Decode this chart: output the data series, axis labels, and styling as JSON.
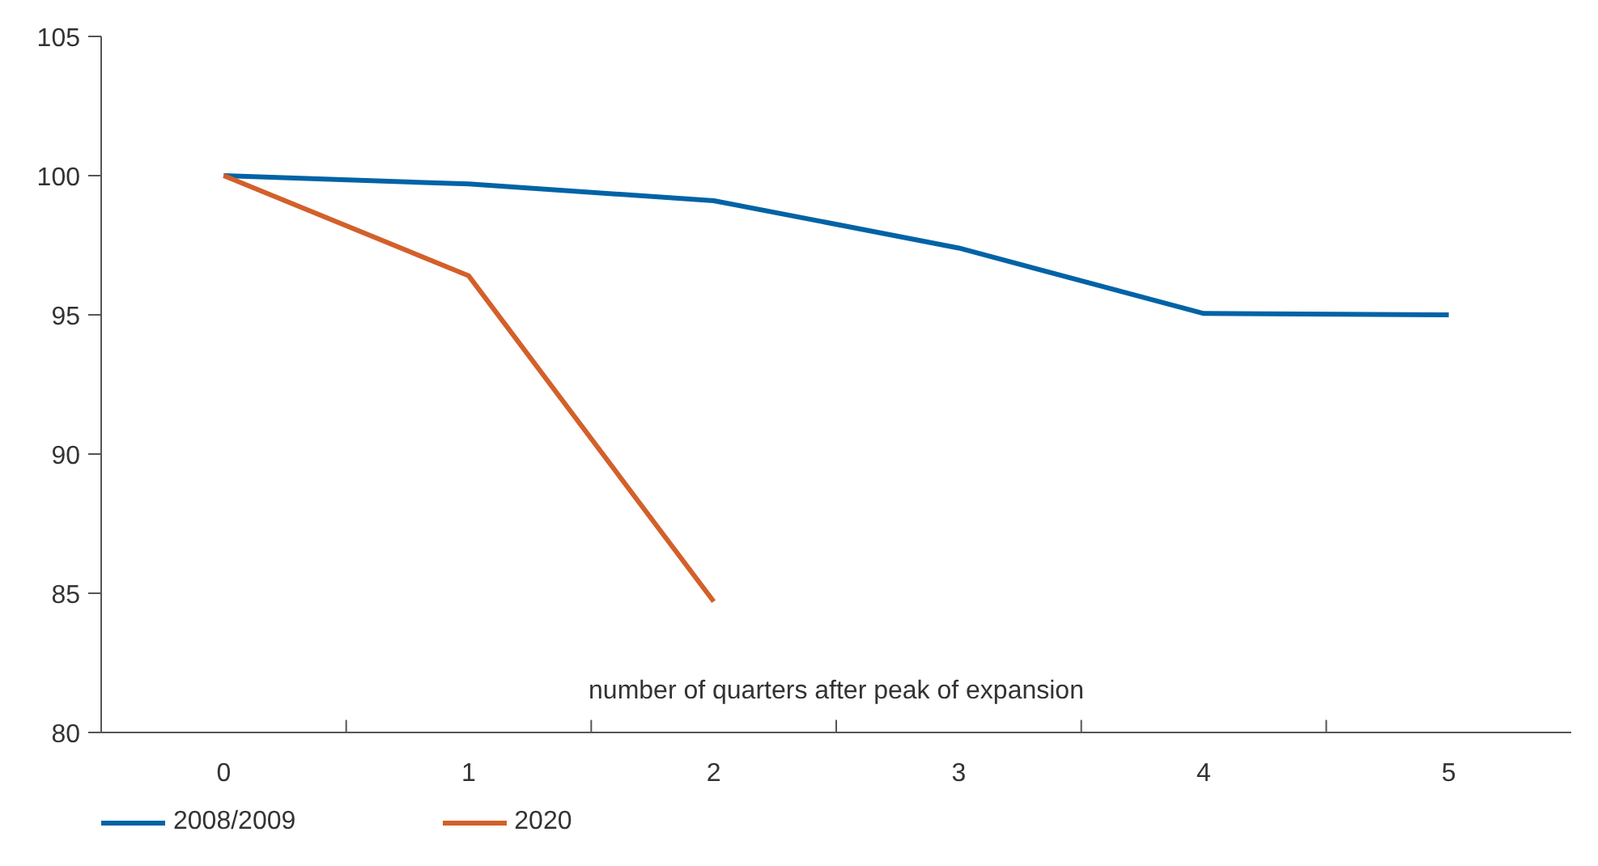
{
  "chart_data": {
    "type": "line",
    "xlabel": "number of quarters after peak of expansion",
    "categories": [
      "0",
      "1",
      "2",
      "3",
      "4",
      "5"
    ],
    "series": [
      {
        "name": "2008/2009",
        "color": "#0063a6",
        "values": [
          100,
          99.7,
          99.1,
          97.4,
          95.05,
          95.0
        ]
      },
      {
        "name": "2020",
        "color": "#d3602a",
        "values": [
          100,
          96.4,
          84.7,
          null,
          null,
          null
        ]
      }
    ],
    "ylim": [
      80,
      105
    ],
    "yticks": [
      80,
      85,
      90,
      95,
      100,
      105
    ],
    "grid": false,
    "legend": "bottom",
    "line_style": "solid",
    "marker": "none"
  }
}
